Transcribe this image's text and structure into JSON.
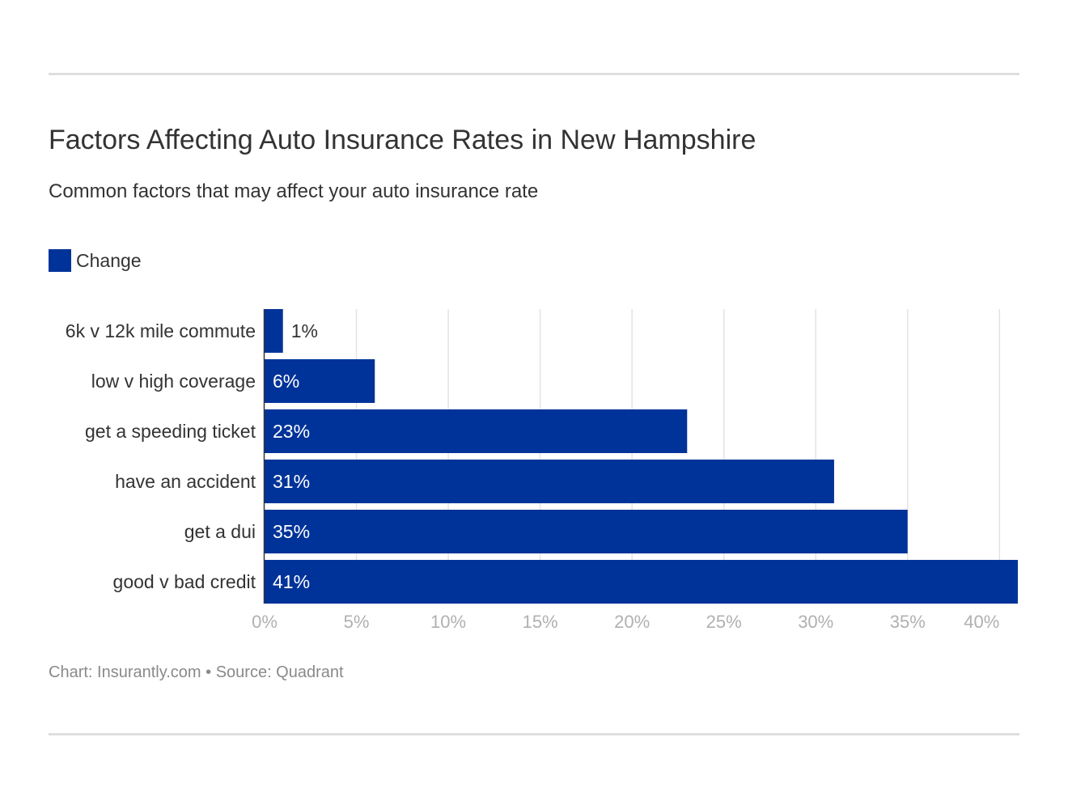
{
  "chart_data": {
    "type": "bar",
    "orientation": "horizontal",
    "title": "Factors Affecting Auto Insurance Rates in New Hampshire",
    "subtitle": "Common factors that may affect your auto insurance rate",
    "categories": [
      "6k v 12k mile commute",
      "low v high coverage",
      "get a speeding ticket",
      "have an accident",
      "get a dui",
      "good v bad credit"
    ],
    "series": [
      {
        "name": "Change",
        "values": [
          1,
          6,
          23,
          31,
          35,
          41
        ],
        "labels": [
          "1%",
          "6%",
          "23%",
          "31%",
          "35%",
          "41%"
        ],
        "color": "#003399"
      }
    ],
    "xlim": [
      0,
      41
    ],
    "xticks": [
      0,
      5,
      10,
      15,
      20,
      25,
      30,
      35,
      40
    ],
    "xtick_labels": [
      "0%",
      "5%",
      "10%",
      "15%",
      "20%",
      "25%",
      "30%",
      "35%",
      "40%"
    ],
    "grid": "vertical",
    "legend": "top-left",
    "footer": "Chart: Insurantly.com • Source: Quadrant"
  }
}
